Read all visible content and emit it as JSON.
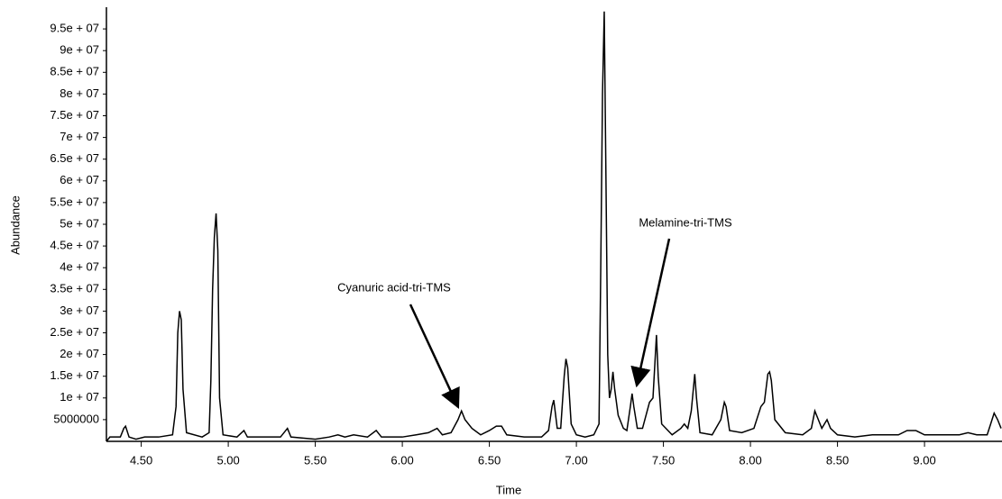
{
  "chart_data": {
    "type": "line",
    "x_label": "Time",
    "y_label": "Abundance",
    "color": "#000000",
    "annotations": [
      "Cyanuric acid-tri-TMS",
      "Melamine-tri-TMS"
    ],
    "xlim": [
      4.3,
      9.44
    ],
    "ylim": [
      0,
      100000000
    ],
    "xticks": [
      {
        "value": 4.5,
        "label": "4.50"
      },
      {
        "value": 5,
        "label": "5.00"
      },
      {
        "value": 5.5,
        "label": "5.50"
      },
      {
        "value": 6,
        "label": "6.00"
      },
      {
        "value": 6.5,
        "label": "6.50"
      },
      {
        "value": 7,
        "label": "7.00"
      },
      {
        "value": 7.5,
        "label": "7.50"
      },
      {
        "value": 8,
        "label": "8.00"
      },
      {
        "value": 8.5,
        "label": "8.50"
      },
      {
        "value": 9,
        "label": "9.00"
      }
    ],
    "yticks": [
      5000000,
      {
        "value": 10000000,
        "label": "1e + 07"
      },
      {
        "value": 15000000,
        "label": "1.5e + 07"
      },
      {
        "value": 20000000,
        "label": "2e + 07"
      },
      {
        "value": 25000000,
        "label": "2.5e + 07"
      },
      {
        "value": 30000000,
        "label": "3e + 07"
      },
      {
        "value": 35000000,
        "label": "3.5e + 07"
      },
      {
        "value": 40000000,
        "label": "4e + 07"
      },
      {
        "value": 45000000,
        "label": "4.5e + 07"
      },
      {
        "value": 50000000,
        "label": "5e + 07"
      },
      {
        "value": 55000000,
        "label": "5.5e + 07"
      },
      {
        "value": 60000000,
        "label": "6e + 07"
      },
      {
        "value": 65000000,
        "label": "6.5e + 07"
      },
      {
        "value": 70000000,
        "label": "7e + 07"
      },
      {
        "value": 75000000,
        "label": "7.5e + 07"
      },
      {
        "value": 80000000,
        "label": "8e + 07"
      },
      {
        "value": 85000000,
        "label": "8.5e + 07"
      },
      {
        "value": 90000000,
        "label": "9e + 07"
      },
      {
        "value": 95000000,
        "label": "9.5e + 07"
      }
    ],
    "x": [
      4.3,
      4.32,
      4.38,
      4.4,
      4.41,
      4.43,
      4.47,
      4.52,
      4.6,
      4.68,
      4.7,
      4.71,
      4.72,
      4.73,
      4.74,
      4.76,
      4.85,
      4.89,
      4.9,
      4.91,
      4.92,
      4.93,
      4.94,
      4.95,
      4.97,
      5.05,
      5.09,
      5.11,
      5.2,
      5.3,
      5.34,
      5.36,
      5.5,
      5.58,
      5.63,
      5.67,
      5.72,
      5.8,
      5.85,
      5.88,
      6.0,
      6.08,
      6.15,
      6.2,
      6.23,
      6.28,
      6.32,
      6.34,
      6.36,
      6.4,
      6.45,
      6.5,
      6.54,
      6.57,
      6.6,
      6.7,
      6.8,
      6.84,
      6.86,
      6.87,
      6.89,
      6.91,
      6.93,
      6.94,
      6.95,
      6.97,
      7.0,
      7.05,
      7.1,
      7.13,
      7.14,
      7.15,
      7.16,
      7.17,
      7.18,
      7.19,
      7.2,
      7.21,
      7.22,
      7.24,
      7.27,
      7.29,
      7.31,
      7.32,
      7.33,
      7.35,
      7.38,
      7.42,
      7.44,
      7.46,
      7.47,
      7.49,
      7.55,
      7.6,
      7.62,
      7.64,
      7.66,
      7.68,
      7.69,
      7.71,
      7.78,
      7.83,
      7.85,
      7.86,
      7.88,
      7.95,
      8.02,
      8.06,
      8.08,
      8.1,
      8.11,
      8.12,
      8.14,
      8.2,
      8.3,
      8.35,
      8.37,
      8.39,
      8.41,
      8.44,
      8.46,
      8.5,
      8.6,
      8.7,
      8.85,
      8.9,
      8.95,
      9.0,
      9.1,
      9.2,
      9.25,
      9.3,
      9.36,
      9.38,
      9.4,
      9.42,
      9.44
    ],
    "values": [
      0,
      1000000,
      1000000,
      3000000,
      3500000,
      1000000,
      500000,
      1000000,
      1000000,
      1500000,
      8000000,
      25000000,
      30000000,
      28000000,
      12000000,
      2000000,
      1000000,
      2000000,
      14000000,
      35000000,
      47000000,
      52500000,
      44000000,
      10000000,
      1500000,
      1000000,
      2500000,
      1000000,
      1000000,
      1000000,
      3000000,
      1000000,
      500000,
      1000000,
      1500000,
      1000000,
      1500000,
      1000000,
      2500000,
      1000000,
      1000000,
      1500000,
      2000000,
      3000000,
      1500000,
      2000000,
      5000000,
      7000000,
      5000000,
      3000000,
      1500000,
      2500000,
      3500000,
      3500000,
      1500000,
      1000000,
      1000000,
      2500000,
      8000000,
      9500000,
      3000000,
      3000000,
      15000000,
      19000000,
      17000000,
      4000000,
      1500000,
      1000000,
      1500000,
      4000000,
      40000000,
      80000000,
      99000000,
      60000000,
      20000000,
      10000000,
      12000000,
      16000000,
      12000000,
      6000000,
      3000000,
      2500000,
      8000000,
      11000000,
      8000000,
      3000000,
      3000000,
      9000000,
      10000000,
      24500000,
      15000000,
      4000000,
      1500000,
      3000000,
      4000000,
      3000000,
      7000000,
      15500000,
      10000000,
      2000000,
      1500000,
      5000000,
      9000000,
      8000000,
      2500000,
      2000000,
      3000000,
      8000000,
      9000000,
      15500000,
      16000000,
      14000000,
      5000000,
      2000000,
      1500000,
      3000000,
      7000000,
      5000000,
      3000000,
      5000000,
      3000000,
      1500000,
      1000000,
      1500000,
      1500000,
      2500000,
      2500000,
      1500000,
      1500000,
      1500000,
      2000000,
      1500000,
      1500000,
      4000000,
      6500000,
      5000000,
      3000000
    ]
  }
}
